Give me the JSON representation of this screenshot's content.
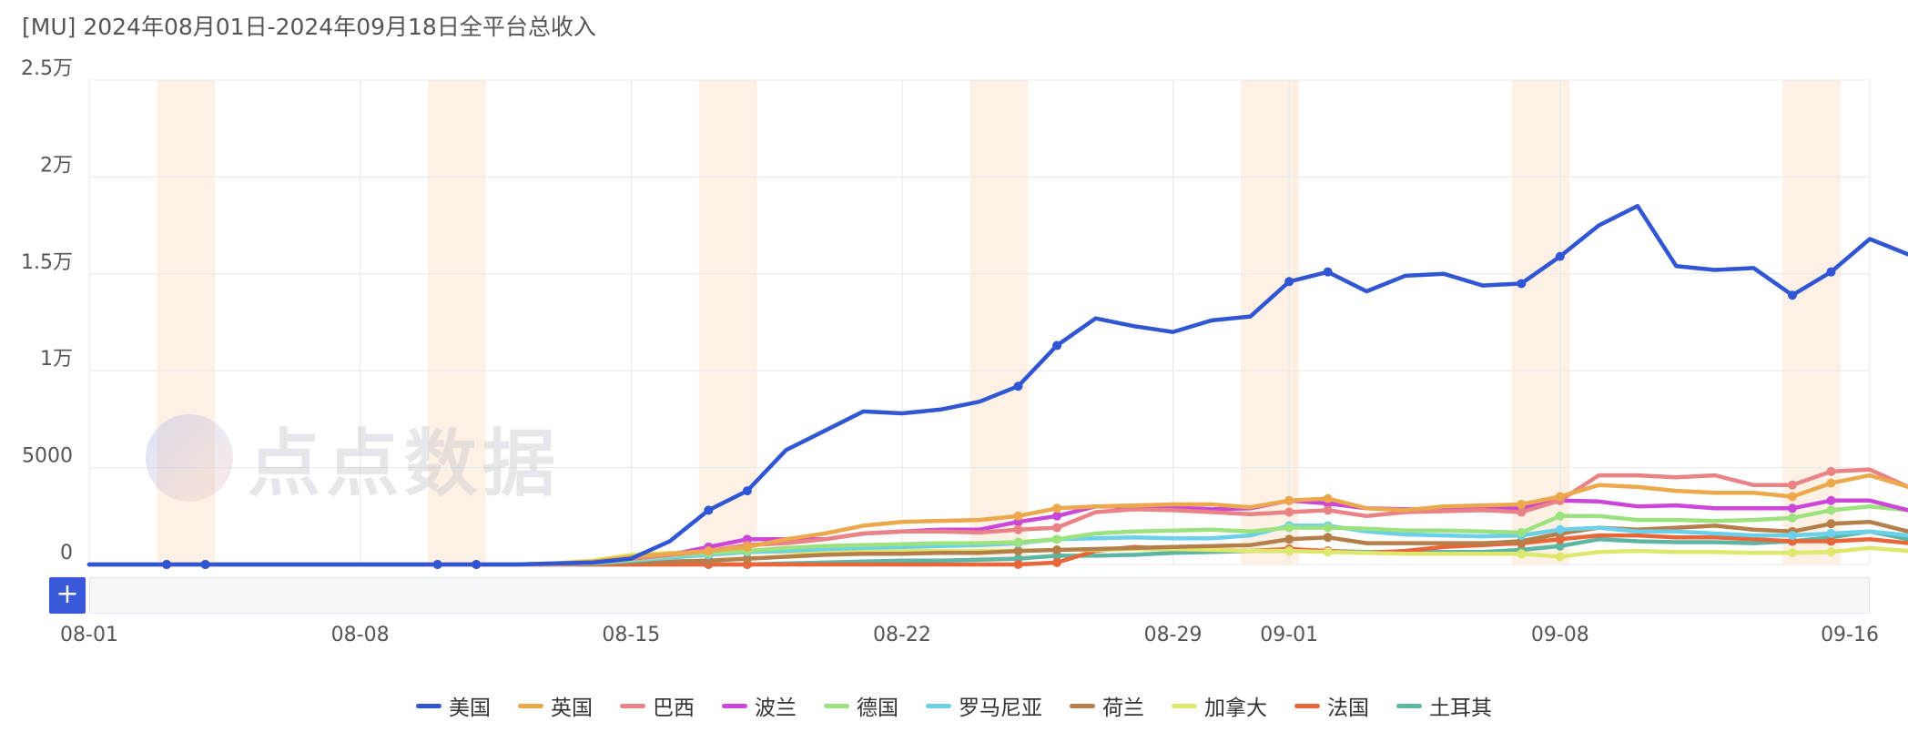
{
  "title": "[MU]  2024年08月01日-2024年09月18日全平台总收入",
  "watermark": "点点数据",
  "plus_label": "+",
  "chart_data": {
    "type": "line",
    "title": "[MU]  2024年08月01日-2024年09月18日全平台总收入",
    "x_tick_labels": [
      "08-01",
      "08-08",
      "08-15",
      "08-22",
      "08-29",
      "09-01",
      "09-08",
      "09-16"
    ],
    "x_tick_days": [
      0,
      7,
      14,
      21,
      28,
      31,
      38,
      46
    ],
    "y_tick_labels": [
      "0",
      "5000",
      "1万",
      "1.5万",
      "2万",
      "2.5万"
    ],
    "ylim": [
      0,
      25000
    ],
    "xlim_days": [
      0,
      46
    ],
    "grid": true,
    "legend_position": "bottom",
    "weekend_bands_days": [
      [
        1.75,
        3.25
      ],
      [
        8.75,
        10.25
      ],
      [
        15.75,
        17.25
      ],
      [
        22.75,
        24.25
      ],
      [
        29.75,
        31.25
      ],
      [
        36.75,
        38.25
      ],
      [
        43.75,
        45.25
      ]
    ],
    "series": [
      {
        "name": "美国",
        "color": "#3056d3",
        "values": [
          0,
          0,
          0,
          0,
          0,
          0,
          0,
          0,
          0,
          0,
          0,
          0,
          50,
          100,
          300,
          1200,
          2800,
          3800,
          5900,
          6900,
          7900,
          7800,
          8000,
          8400,
          9200,
          11300,
          12700,
          12300,
          12000,
          12600,
          12800,
          14600,
          15100,
          14100,
          14900,
          15000,
          14400,
          14500,
          15900,
          17500,
          18500,
          15400,
          15200,
          15300,
          13900,
          15100,
          16800,
          16000
        ]
      },
      {
        "name": "英国",
        "color": "#eca84a",
        "values": [
          0,
          0,
          0,
          0,
          0,
          0,
          0,
          0,
          0,
          0,
          0,
          0,
          50,
          150,
          400,
          550,
          700,
          900,
          1300,
          1600,
          2000,
          2200,
          2250,
          2300,
          2500,
          2900,
          3000,
          3050,
          3100,
          3100,
          2950,
          3300,
          3400,
          2900,
          2800,
          3000,
          3050,
          3100,
          3500,
          4100,
          4000,
          3800,
          3700,
          3700,
          3500,
          4200,
          4600,
          4000
        ]
      },
      {
        "name": "巴西",
        "color": "#ea8385",
        "values": [
          0,
          0,
          0,
          0,
          0,
          0,
          0,
          0,
          0,
          0,
          0,
          0,
          30,
          100,
          300,
          500,
          700,
          1000,
          1100,
          1300,
          1600,
          1700,
          1700,
          1650,
          1800,
          1900,
          2700,
          2850,
          2800,
          2700,
          2600,
          2700,
          2800,
          2500,
          2700,
          2750,
          2800,
          2700,
          3300,
          4600,
          4600,
          4500,
          4600,
          4100,
          4100,
          4800,
          4900,
          4000
        ]
      },
      {
        "name": "波兰",
        "color": "#cc47d8",
        "values": [
          0,
          0,
          0,
          0,
          0,
          0,
          0,
          0,
          0,
          0,
          0,
          0,
          30,
          100,
          300,
          500,
          900,
          1300,
          1300,
          1300,
          1600,
          1700,
          1800,
          1800,
          2200,
          2500,
          3000,
          3000,
          2950,
          2850,
          2900,
          3300,
          3150,
          2900,
          2850,
          2850,
          2900,
          2900,
          3300,
          3250,
          3000,
          3050,
          2900,
          2900,
          2900,
          3300,
          3300,
          2800
        ]
      },
      {
        "name": "德国",
        "color": "#9ce27f",
        "values": [
          0,
          0,
          0,
          0,
          0,
          0,
          0,
          0,
          0,
          0,
          0,
          0,
          20,
          80,
          250,
          450,
          600,
          700,
          850,
          950,
          1000,
          1050,
          1100,
          1100,
          1150,
          1300,
          1600,
          1700,
          1750,
          1800,
          1700,
          1900,
          1900,
          1850,
          1750,
          1750,
          1700,
          1650,
          2500,
          2500,
          2300,
          2300,
          2250,
          2300,
          2400,
          2800,
          3000,
          2800
        ]
      },
      {
        "name": "罗马尼亚",
        "color": "#6bd0ea",
        "values": [
          0,
          0,
          0,
          0,
          0,
          0,
          0,
          0,
          0,
          0,
          0,
          0,
          20,
          60,
          200,
          350,
          500,
          650,
          700,
          800,
          850,
          900,
          950,
          1000,
          1100,
          1300,
          1350,
          1400,
          1350,
          1350,
          1500,
          2000,
          2000,
          1700,
          1550,
          1500,
          1450,
          1500,
          1800,
          1900,
          1700,
          1700,
          1600,
          1500,
          1500,
          1600,
          1700,
          1500
        ]
      },
      {
        "name": "荷兰",
        "color": "#b67f4a",
        "values": [
          0,
          0,
          0,
          0,
          0,
          0,
          0,
          0,
          0,
          0,
          0,
          0,
          10,
          40,
          100,
          150,
          200,
          300,
          400,
          500,
          550,
          550,
          600,
          600,
          700,
          750,
          800,
          850,
          900,
          950,
          1000,
          1300,
          1400,
          1100,
          1100,
          1100,
          1100,
          1200,
          1600,
          1900,
          1800,
          1900,
          2000,
          1800,
          1700,
          2100,
          2200,
          1700
        ]
      },
      {
        "name": "加拿大",
        "color": "#dde86d",
        "values": [
          0,
          0,
          0,
          0,
          0,
          0,
          0,
          0,
          0,
          0,
          0,
          0,
          50,
          200,
          500,
          600,
          600,
          650,
          650,
          650,
          700,
          700,
          700,
          700,
          700,
          750,
          750,
          800,
          800,
          750,
          700,
          700,
          650,
          600,
          550,
          550,
          550,
          550,
          400,
          650,
          700,
          650,
          650,
          600,
          600,
          650,
          850,
          700
        ]
      },
      {
        "name": "法国",
        "color": "#e9663b",
        "values": [
          0,
          0,
          0,
          0,
          0,
          0,
          0,
          0,
          0,
          0,
          0,
          0,
          0,
          0,
          0,
          0,
          0,
          0,
          0,
          0,
          0,
          0,
          0,
          0,
          0,
          100,
          700,
          900,
          800,
          750,
          700,
          800,
          700,
          600,
          700,
          900,
          1000,
          1100,
          1300,
          1500,
          1500,
          1400,
          1400,
          1300,
          1200,
          1200,
          1300,
          1100
        ]
      },
      {
        "name": "土耳其",
        "color": "#5cb6a3",
        "values": [
          0,
          0,
          0,
          0,
          0,
          0,
          0,
          0,
          0,
          0,
          0,
          0,
          0,
          0,
          0,
          0,
          0,
          0,
          50,
          100,
          150,
          200,
          200,
          250,
          300,
          450,
          450,
          500,
          600,
          650,
          700,
          700,
          700,
          650,
          650,
          650,
          650,
          750,
          950,
          1300,
          1200,
          1150,
          1150,
          1100,
          1200,
          1400,
          1700,
          1300
        ]
      }
    ],
    "marker_days": [
      2,
      3,
      9,
      10,
      16,
      17,
      24,
      25,
      31,
      32,
      37,
      38,
      44,
      45
    ]
  }
}
